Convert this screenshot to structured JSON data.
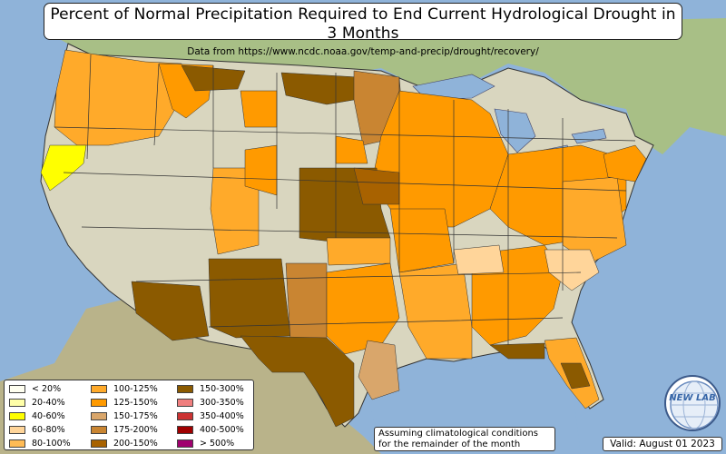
{
  "title": "Percent of Normal Precipitation Required to End Current Hydrological Drought in 3 Months",
  "subtitle": "Data from https://www.ncdc.noaa.gov/temp-and-precip/drought/recovery/",
  "legend": [
    {
      "label": "< 20%",
      "color": "#fffff0"
    },
    {
      "label": "20-40%",
      "color": "#ffffa8"
    },
    {
      "label": "40-60%",
      "color": "#ffff00"
    },
    {
      "label": "60-80%",
      "color": "#ffd59a"
    },
    {
      "label": "80-100%",
      "color": "#ffbb55"
    },
    {
      "label": "100-125%",
      "color": "#ffaa2a"
    },
    {
      "label": "125-150%",
      "color": "#ff9a00"
    },
    {
      "label": "150-175%",
      "color": "#d9a66b"
    },
    {
      "label": "175-200%",
      "color": "#c98532"
    },
    {
      "label": "200-150%",
      "color": "#a86200"
    },
    {
      "label": "150-300%",
      "color": "#8b5a00"
    },
    {
      "label": "300-350%",
      "color": "#f07f7f"
    },
    {
      "label": "350-400%",
      "color": "#cc3333"
    },
    {
      "label": "400-500%",
      "color": "#a00000"
    },
    {
      "label": "> 500%",
      "color": "#a0006f"
    }
  ],
  "note": {
    "line1": "Assuming climatological conditions",
    "line2": "for the remainder of the month"
  },
  "valid": "Valid: August 01 2023",
  "logo_text": "NEW LAB"
}
